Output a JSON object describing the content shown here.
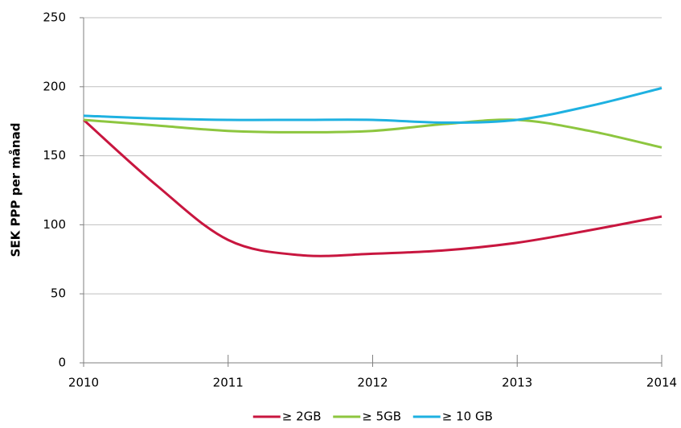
{
  "chart_data": {
    "type": "line",
    "y_label": "SEK PPP per månad",
    "x": [
      2010,
      2010.5,
      2011,
      2011.5,
      2012,
      2012.5,
      2013,
      2013.5,
      2014
    ],
    "series": [
      {
        "name": "≥ 2GB",
        "color": "#c8163f",
        "values": [
          176,
          129,
          89,
          78,
          79,
          81.5,
          87,
          96,
          106
        ]
      },
      {
        "name": "≥ 5GB",
        "color": "#8dc63f",
        "values": [
          176,
          172,
          168,
          167,
          168,
          173,
          176,
          168,
          156
        ]
      },
      {
        "name": "≥ 10 GB",
        "color": "#1eb1e1",
        "values": [
          179,
          177,
          176,
          176,
          176,
          174,
          176,
          186,
          199
        ]
      }
    ],
    "xlim": [
      2010,
      2014
    ],
    "xticks": [
      2010,
      2011,
      2012,
      2013,
      2014
    ],
    "ylim": [
      0,
      250
    ],
    "yticks": [
      0,
      50,
      100,
      150,
      200,
      250
    ],
    "grid": true,
    "legend": "bottom"
  }
}
